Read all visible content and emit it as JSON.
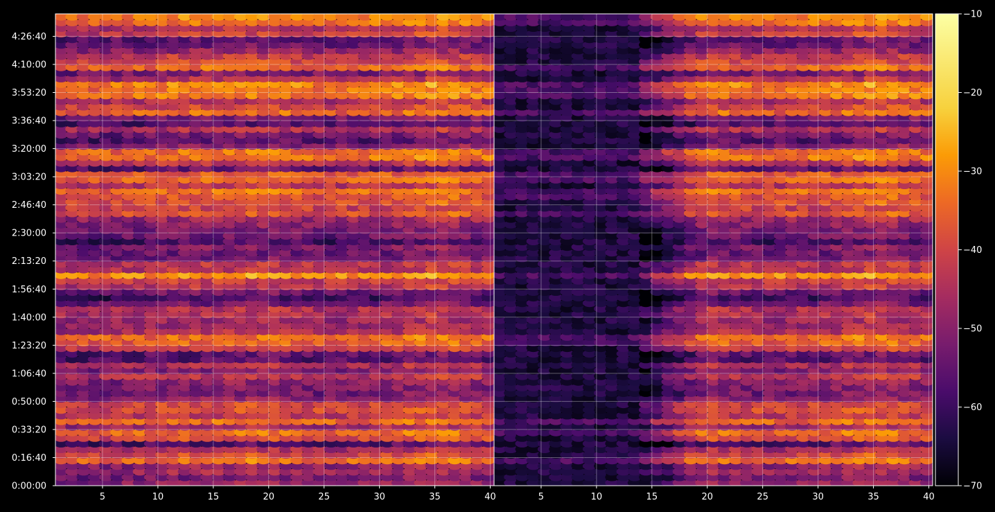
{
  "chart_data": {
    "type": "heatmap",
    "title": "",
    "xlabel": "",
    "ylabel": "",
    "grid": true,
    "colormap": "inferno",
    "panels": [
      {
        "name": "left",
        "xlim": [
          1,
          40
        ],
        "x_ticks": [
          5,
          10,
          15,
          20,
          25,
          30,
          35,
          40
        ],
        "ylim": [
          0,
          16800
        ],
        "y_tick_values": [
          0,
          1000,
          2000,
          3000,
          4000,
          5000,
          6000,
          7000,
          8000,
          9000,
          10000,
          11000,
          12000,
          13000,
          14000,
          15000,
          16000
        ],
        "y_tick_labels": [
          "0:00:00",
          "0:16:40",
          "0:33:20",
          "0:50:00",
          "1:06:40",
          "1:23:20",
          "1:40:00",
          "1:56:40",
          "2:13:20",
          "2:30:00",
          "2:46:40",
          "3:03:20",
          "3:20:00",
          "3:36:40",
          "3:53:20",
          "4:10:00",
          "4:26:40"
        ]
      },
      {
        "name": "right",
        "xlim": [
          1,
          40
        ],
        "x_ticks": [
          5,
          10,
          15,
          20,
          25,
          30,
          35,
          40
        ],
        "ylim": [
          0,
          16800
        ],
        "y_tick_values": [
          0,
          1000,
          2000,
          3000,
          4000,
          5000,
          6000,
          7000,
          8000,
          9000,
          10000,
          11000,
          12000,
          13000,
          14000,
          15000,
          16000
        ],
        "note_dark_band": [
          1,
          14
        ]
      }
    ],
    "colorbar": {
      "range": [
        -70,
        -10
      ],
      "ticks": [
        "−10",
        "−20",
        "−30",
        "−40",
        "−50",
        "−60",
        "−70"
      ]
    },
    "row_profile": {
      "y": [
        200,
        600,
        1000,
        1400,
        1800,
        2200,
        2600,
        3000,
        3400,
        3800,
        4200,
        4600,
        5000,
        5400,
        5800,
        6200,
        6600,
        7000,
        7400,
        7800,
        8200,
        8600,
        9000,
        9400,
        9800,
        10200,
        10600,
        11000,
        11400,
        11800,
        12200,
        12600,
        13000,
        13400,
        13800,
        14200,
        14600,
        15000,
        15400,
        15800,
        16200,
        16600
      ],
      "values": [
        -44,
        -56,
        -32,
        -55,
        -40,
        -42,
        -36,
        -49,
        -58,
        -52,
        -46,
        -54,
        -40,
        -38,
        -48,
        -35,
        -60,
        -52,
        -34,
        -40,
        -55,
        -54,
        -50,
        -42,
        -38,
        -44,
        -36,
        -40,
        -52,
        -30,
        -56,
        -48,
        -52,
        -38,
        -42,
        -32,
        -50,
        -36,
        -40,
        -52,
        -38,
        -34
      ]
    },
    "column_profile": {
      "x": [
        5,
        10,
        15,
        20,
        25,
        30,
        35,
        40
      ],
      "values": [
        -46,
        -44,
        -43,
        -42,
        -45,
        -44,
        -40,
        -44
      ]
    }
  }
}
